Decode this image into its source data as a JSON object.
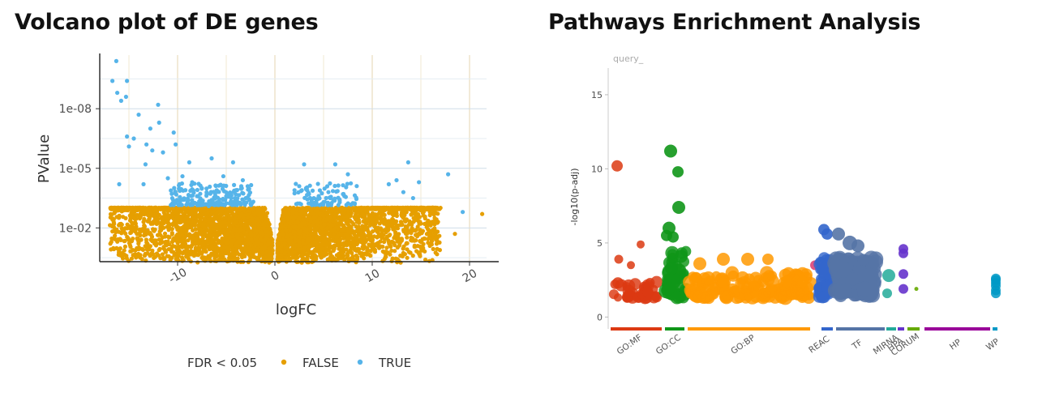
{
  "volcano_title": "Volcano plot of DE genes",
  "pathway_title": "Pathways Enrichment Analysis",
  "chart_data": [
    {
      "type": "scatter",
      "title": "Volcano plot of DE genes",
      "xlabel": "logFC",
      "ylabel": "PValue",
      "xlim": [
        -18,
        23
      ],
      "ylim_log10": [
        -0.3,
        -10.7
      ],
      "x_ticks": [
        -10,
        0,
        10,
        20
      ],
      "x_tick_labels": [
        "-10",
        "0",
        "10",
        "20"
      ],
      "y_ticks_log10": [
        -8,
        -5,
        -2
      ],
      "y_tick_labels": [
        "1e-08",
        "1e-05",
        "1e-02"
      ],
      "grid": true,
      "legend": {
        "title": "FDR < 0.05",
        "position": "bottom",
        "entries": [
          "FALSE",
          "TRUE"
        ]
      },
      "colors": {
        "FALSE": "#E69F00",
        "TRUE": "#56B4E9"
      },
      "significance_threshold_log10p": -3.1,
      "series": [
        {
          "name": "TRUE",
          "points": [
            [
              -16.3,
              -10.4
            ],
            [
              -16.7,
              -9.4
            ],
            [
              -15.2,
              -9.4
            ],
            [
              -16.2,
              -8.8
            ],
            [
              -15.3,
              -8.6
            ],
            [
              -15.8,
              -8.4
            ],
            [
              -12.0,
              -8.2
            ],
            [
              -14.0,
              -7.7
            ],
            [
              -11.9,
              -7.3
            ],
            [
              -12.8,
              -7.0
            ],
            [
              -10.4,
              -6.8
            ],
            [
              -15.2,
              -6.6
            ],
            [
              -14.5,
              -6.5
            ],
            [
              -15.0,
              -6.1
            ],
            [
              -13.2,
              -6.2
            ],
            [
              -10.2,
              -6.2
            ],
            [
              -12.6,
              -5.9
            ],
            [
              -13.3,
              -5.2
            ],
            [
              -11.5,
              -5.8
            ],
            [
              -8.8,
              -5.3
            ],
            [
              -6.5,
              -5.5
            ],
            [
              -4.3,
              -5.3
            ],
            [
              -16.0,
              -4.2
            ],
            [
              -13.5,
              -4.2
            ],
            [
              -11.0,
              -4.5
            ],
            [
              -9.5,
              -4.6
            ],
            [
              -9.8,
              -4.2
            ],
            [
              -9.2,
              -3.9
            ],
            [
              -8.5,
              -4.3
            ],
            [
              -8.0,
              -3.6
            ],
            [
              -7.5,
              -4.0
            ],
            [
              -7.0,
              -3.7
            ],
            [
              -6.5,
              -3.4
            ],
            [
              -6.0,
              -3.8
            ],
            [
              -5.8,
              -3.3
            ],
            [
              -5.0,
              -3.6
            ],
            [
              -4.5,
              -3.5
            ],
            [
              -4.0,
              -3.9
            ],
            [
              -3.8,
              -3.3
            ],
            [
              -3.3,
              -4.4
            ],
            [
              -3.0,
              -3.5
            ],
            [
              -2.8,
              -4.1
            ],
            [
              -2.5,
              -3.2
            ],
            [
              -9.0,
              -3.2
            ],
            [
              -7.8,
              -3.2
            ],
            [
              -3.5,
              -3.2
            ],
            [
              -5.3,
              -4.6
            ],
            [
              -6.8,
              -3.1
            ],
            [
              3.0,
              -5.2
            ],
            [
              6.2,
              -5.2
            ],
            [
              7.5,
              -4.7
            ],
            [
              13.7,
              -5.3
            ],
            [
              17.8,
              -4.7
            ],
            [
              14.8,
              -4.3
            ],
            [
              2.5,
              -4.1
            ],
            [
              3.2,
              -4.0
            ],
            [
              3.5,
              -3.7
            ],
            [
              4.0,
              -3.5
            ],
            [
              4.5,
              -3.6
            ],
            [
              5.0,
              -3.3
            ],
            [
              5.5,
              -3.8
            ],
            [
              6.0,
              -3.4
            ],
            [
              7.0,
              -3.7
            ],
            [
              3.8,
              -3.3
            ],
            [
              8.2,
              -3.2
            ],
            [
              11.7,
              -4.2
            ],
            [
              12.5,
              -4.4
            ],
            [
              2.2,
              -3.2
            ],
            [
              4.8,
              -3.2
            ],
            [
              19.3,
              -2.8
            ],
            [
              14.2,
              -3.5
            ],
            [
              13.2,
              -3.8
            ]
          ]
        },
        {
          "name": "FALSE",
          "points": [
            [
              21.3,
              -2.7
            ],
            [
              18.5,
              -1.7
            ],
            [
              16.5,
              -1.5
            ],
            [
              15.0,
              -1.3
            ],
            [
              13.5,
              -1.2
            ],
            [
              -13.5,
              -2.3
            ],
            [
              -12.0,
              -2.6
            ],
            [
              -10.5,
              -2.2
            ],
            [
              -12.5,
              -1.9
            ],
            [
              -9.5,
              -1.7
            ],
            [
              -8.5,
              -1.6
            ],
            [
              -7.0,
              -1.3
            ],
            [
              -5.5,
              -1.2
            ],
            [
              -4.0,
              -1.1
            ],
            [
              11.5,
              -1.0
            ],
            [
              10.0,
              -1.3
            ],
            [
              9.5,
              -1.6
            ],
            [
              8.5,
              -2.0
            ],
            [
              7.5,
              -2.4
            ],
            [
              6.5,
              -2.8
            ],
            [
              9.0,
              -2.7
            ],
            [
              12.0,
              -2.3
            ],
            [
              12.5,
              -1.6
            ],
            [
              -11.0,
              -2.9
            ],
            [
              -14.5,
              -2.0
            ],
            [
              -12.8,
              -2.8
            ]
          ]
        }
      ]
    },
    {
      "type": "scatter",
      "title": "Pathways Enrichment Analysis",
      "xlabel": "",
      "ylabel": "-log10(p-adj)",
      "ylim": [
        -0.8,
        16.8
      ],
      "y_ticks": [
        0,
        5,
        10,
        15
      ],
      "legend_label": "query_",
      "sources": [
        {
          "name": "GO:MF",
          "color": "#dc3912",
          "label_x": 778
        },
        {
          "name": "GO:CC",
          "color": "#109618",
          "label_x": 826
        },
        {
          "name": "GO:BP",
          "color": "#ff9900",
          "label_x": 918
        },
        {
          "name": "REAC",
          "color": "#3366cc",
          "label_x": 1012
        },
        {
          "name": "TF",
          "color": "#5574a6",
          "label_x": 1059
        },
        {
          "name": "MIRNA",
          "color": "#22aa99",
          "label_x": 1094
        },
        {
          "name": "HPA",
          "color": "#6633cc",
          "label_x": 1106
        },
        {
          "name": "CORUM",
          "color": "#66aa00",
          "label_x": 1118
        },
        {
          "name": "HP",
          "color": "#990099",
          "label_x": 1180
        },
        {
          "name": "WP",
          "color": "#0099c6",
          "label_x": 1226
        }
      ],
      "bands": [
        {
          "source": "GO:MF",
          "x0": 753,
          "x1": 816
        },
        {
          "source": "GO:CC",
          "x0": 820,
          "x1": 844
        },
        {
          "source": "GO:BP",
          "x0": 848,
          "x1": 999
        },
        {
          "source": "REAC",
          "x0": 1013,
          "x1": 1027
        },
        {
          "source": "TF",
          "x0": 1031,
          "x1": 1091
        },
        {
          "source": "MIRNA",
          "x0": 1093,
          "x1": 1105
        },
        {
          "source": "HPA",
          "x0": 1107,
          "x1": 1115
        },
        {
          "source": "CORUM",
          "x0": 1119,
          "x1": 1134
        },
        {
          "source": "HP",
          "x0": 1140,
          "x1": 1221
        },
        {
          "source": "WP",
          "x0": 1224,
          "x1": 1230
        }
      ]
    }
  ]
}
